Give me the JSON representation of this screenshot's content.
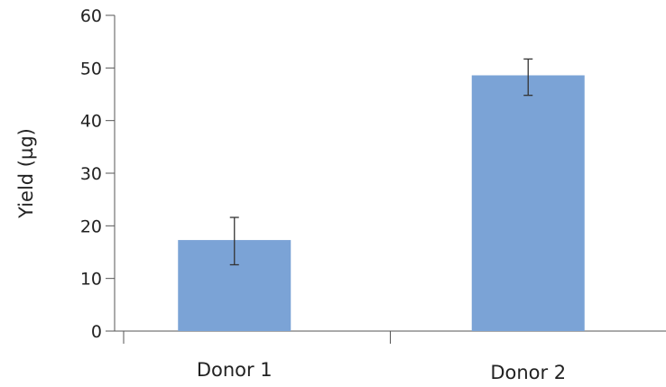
{
  "chart_data": {
    "type": "bar",
    "title": "",
    "xlabel": "",
    "ylabel": "Yield (µg)",
    "categories": [
      "Donor 1",
      "Donor 2"
    ],
    "values": [
      17.3,
      48.6
    ],
    "error": [
      {
        "low": 12.6,
        "high": 21.6
      },
      {
        "low": 44.8,
        "high": 51.7
      }
    ],
    "ylim": [
      0,
      60
    ],
    "yticks": [
      0,
      10,
      20,
      30,
      40,
      50,
      60
    ],
    "grid": false,
    "legend": "none",
    "bar_color": "#7ba3d6",
    "axis_color": "#555555",
    "error_color": "#333333"
  }
}
